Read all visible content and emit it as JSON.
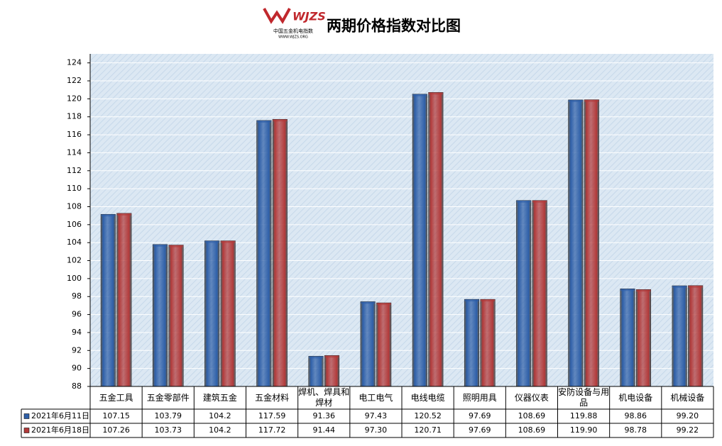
{
  "logo": {
    "mark": "WJZS",
    "name": "中国五金机电指数",
    "url": "WWW.WJZS.ORG"
  },
  "chart_data": {
    "type": "bar",
    "title": "两期价格指数对比图",
    "categories": [
      "五金工具",
      "五金零部件",
      "建筑五金",
      "五金材料",
      "焊机、焊具和焊材",
      "电工电气",
      "电线电缆",
      "照明用具",
      "仪器仪表",
      "安防设备与用品",
      "机电设备",
      "机械设备"
    ],
    "series": [
      {
        "name": "2021年6月11日",
        "color": "#2e5fa8",
        "values": [
          107.15,
          103.79,
          104.2,
          117.59,
          91.36,
          97.43,
          120.52,
          97.69,
          108.69,
          119.88,
          98.86,
          99.2
        ],
        "value_labels": [
          "107.15",
          "103.79",
          "104.2",
          "117.59",
          "91.36",
          "97.43",
          "120.52",
          "97.69",
          "108.69",
          "119.88",
          "98.86",
          "99.20"
        ]
      },
      {
        "name": "2021年6月18日",
        "color": "#b23a3a",
        "values": [
          107.26,
          103.73,
          104.2,
          117.72,
          91.44,
          97.3,
          120.71,
          97.69,
          108.69,
          119.9,
          98.78,
          99.22
        ],
        "value_labels": [
          "107.26",
          "103.73",
          "104.2",
          "117.72",
          "91.44",
          "97.30",
          "120.71",
          "97.69",
          "108.69",
          "119.90",
          "98.78",
          "99.22"
        ]
      }
    ],
    "ylim": [
      88,
      125
    ],
    "yticks": [
      88,
      90,
      92,
      94,
      96,
      98,
      100,
      102,
      104,
      106,
      108,
      110,
      112,
      114,
      116,
      118,
      120,
      122,
      124
    ],
    "grid": true
  }
}
